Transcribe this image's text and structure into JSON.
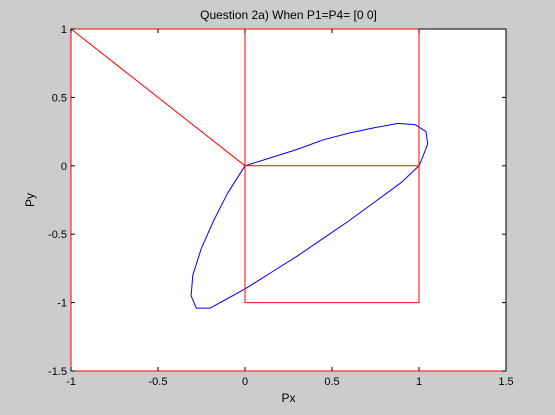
{
  "figure": {
    "background": "#cccccc",
    "plot_background": "#ffffff"
  },
  "chart_data": {
    "type": "line",
    "title": "Question 2a) When P1=P4= [0 0]",
    "xlabel": "Px",
    "ylabel": "Py",
    "xlim": [
      -1,
      1.5
    ],
    "ylim": [
      -1.5,
      1
    ],
    "xticks": [
      -1,
      -0.5,
      0,
      0.5,
      1,
      1.5
    ],
    "xtick_labels": [
      "-1",
      "-0.5",
      "0",
      "0.5",
      "1",
      "1.5"
    ],
    "yticks": [
      -1.5,
      -1,
      -0.5,
      0,
      0.5,
      1
    ],
    "ytick_labels": [
      "-1.5",
      "-1",
      "-0.5",
      "0",
      "0.5",
      "1"
    ],
    "grid": false,
    "legend": "none",
    "series": [
      {
        "color": "#0000ff",
        "x": [
          0,
          0.05,
          0.15,
          0.3,
          0.45,
          0.6,
          0.75,
          0.88,
          0.98,
          1.04,
          1.05,
          1.02,
          1.0,
          0.9,
          0.75,
          0.6,
          0.45,
          0.3,
          0.15,
          0.0,
          -0.1,
          -0.2,
          -0.28,
          -0.31,
          -0.3,
          -0.25,
          -0.18,
          -0.1,
          0
        ],
        "y": [
          0,
          0.02,
          0.06,
          0.12,
          0.19,
          0.24,
          0.28,
          0.31,
          0.3,
          0.25,
          0.16,
          0.06,
          0,
          -0.12,
          -0.26,
          -0.4,
          -0.53,
          -0.66,
          -0.78,
          -0.9,
          -0.97,
          -1.04,
          -1.04,
          -0.95,
          -0.8,
          -0.6,
          -0.4,
          -0.2,
          0
        ]
      },
      {
        "color": "#ff0000",
        "x": [
          0,
          0,
          1,
          1,
          0,
          0,
          0,
          -1,
          0,
          1
        ],
        "y": [
          0,
          1,
          1,
          -1,
          -1,
          0,
          1,
          1,
          0,
          0
        ]
      },
      {
        "color": "#ff0000",
        "x": [
          -1,
          -1,
          1.5
        ],
        "y": [
          1,
          -1.5,
          -1.5
        ]
      }
    ]
  }
}
